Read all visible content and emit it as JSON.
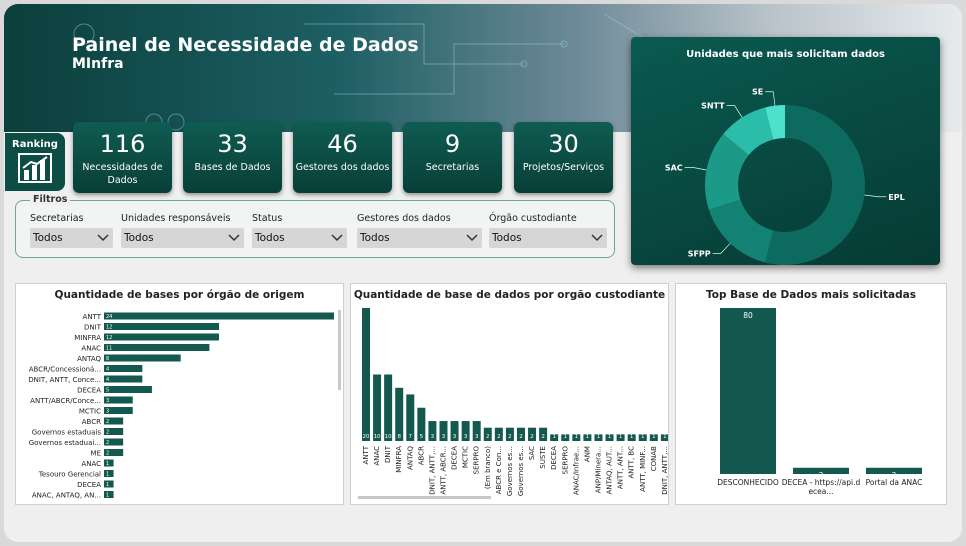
{
  "header": {
    "title": "Painel de Necessidade de Dados",
    "subtitle": "MInfra"
  },
  "ranking_button": {
    "label": "Ranking"
  },
  "kpis": [
    {
      "value": 116,
      "label": "Necessidades de Dados"
    },
    {
      "value": 33,
      "label": "Bases de Dados"
    },
    {
      "value": 46,
      "label": "Gestores dos dados"
    },
    {
      "value": 9,
      "label": "Secretarias"
    },
    {
      "value": 30,
      "label": "Projetos/Serviços"
    }
  ],
  "filters": {
    "title": "Filtros",
    "items": [
      {
        "label": "Secretarias",
        "selected": "Todos"
      },
      {
        "label": "Unidades responsáveis",
        "selected": "Todos"
      },
      {
        "label": "Status",
        "selected": "Todos"
      },
      {
        "label": "Gestores dos dados",
        "selected": "Todos"
      },
      {
        "label": "Órgão custodiante",
        "selected": "Todos"
      }
    ]
  },
  "chart_data": [
    {
      "type": "pie",
      "title": "Unidades que mais solicitam dados",
      "categories": [
        "EPL",
        "SFPP",
        "SAC",
        "SNTT",
        "SE"
      ],
      "values": [
        54,
        16,
        16,
        10,
        4
      ],
      "colors": [
        "#0c6b5e",
        "#138274",
        "#1b9a89",
        "#2cbcaa",
        "#4fe0cc"
      ]
    },
    {
      "type": "barh",
      "title": "Quantidade de bases por órgão de origem",
      "categories": [
        "ANTT",
        "DNIT",
        "MINFRA",
        "ANAC",
        "ANTAQ",
        "ABCR/Concessioná...",
        "DNIT, ANTT, Conce...",
        "DECEA",
        "ANTT/ABCR/Conce...",
        "MCTIC",
        "ABCR",
        "Governos estaduais",
        "Governos estaduai...",
        "ME",
        "ANAC",
        "Tesouro Gerencial",
        "DECEA",
        "ANAC, ANTAQ, AN..."
      ],
      "values": [
        24,
        12,
        12,
        11,
        8,
        4,
        4,
        5,
        3,
        3,
        2,
        2,
        2,
        2,
        1,
        1,
        1,
        1
      ],
      "color": "#14594f"
    },
    {
      "type": "bar",
      "title": "Quantidade de base de dados por orgão custodiante",
      "categories": [
        "ANTT",
        "ANAC",
        "DNIT",
        "MINFRA",
        "ANTAQ",
        "ABCR",
        "DNIT, ANTT,...",
        "ANTT, ABCR...",
        "DECEA",
        "MCTIC",
        "SERPRO",
        "(Em branco)",
        "ABCR e Con...",
        "Governos es...",
        "Governos es...",
        "SAC",
        "SUSTE",
        "DECEA",
        "SERPRO",
        "ANAC/Infrae...",
        "ANM",
        "ANP/Minera...",
        "ANTAQ, AUT...",
        "ANTT, ANT...",
        "ANTT, BC",
        "ANTT, MINF...",
        "CONAB",
        "DNIT, ANTT,..."
      ],
      "values": [
        20,
        10,
        10,
        8,
        7,
        5,
        3,
        3,
        3,
        3,
        3,
        2,
        2,
        2,
        2,
        2,
        2,
        1,
        1,
        1,
        1,
        1,
        1,
        1,
        1,
        1,
        1,
        1
      ],
      "color": "#14594f"
    },
    {
      "type": "bar",
      "title": "Top Base de Dados mais solicitadas",
      "categories": [
        "DESCONHECIDO",
        "DECEA - https://api.decea...",
        "Portal da ANAC"
      ],
      "values": [
        80,
        3,
        3
      ],
      "color": "#14594f"
    }
  ]
}
